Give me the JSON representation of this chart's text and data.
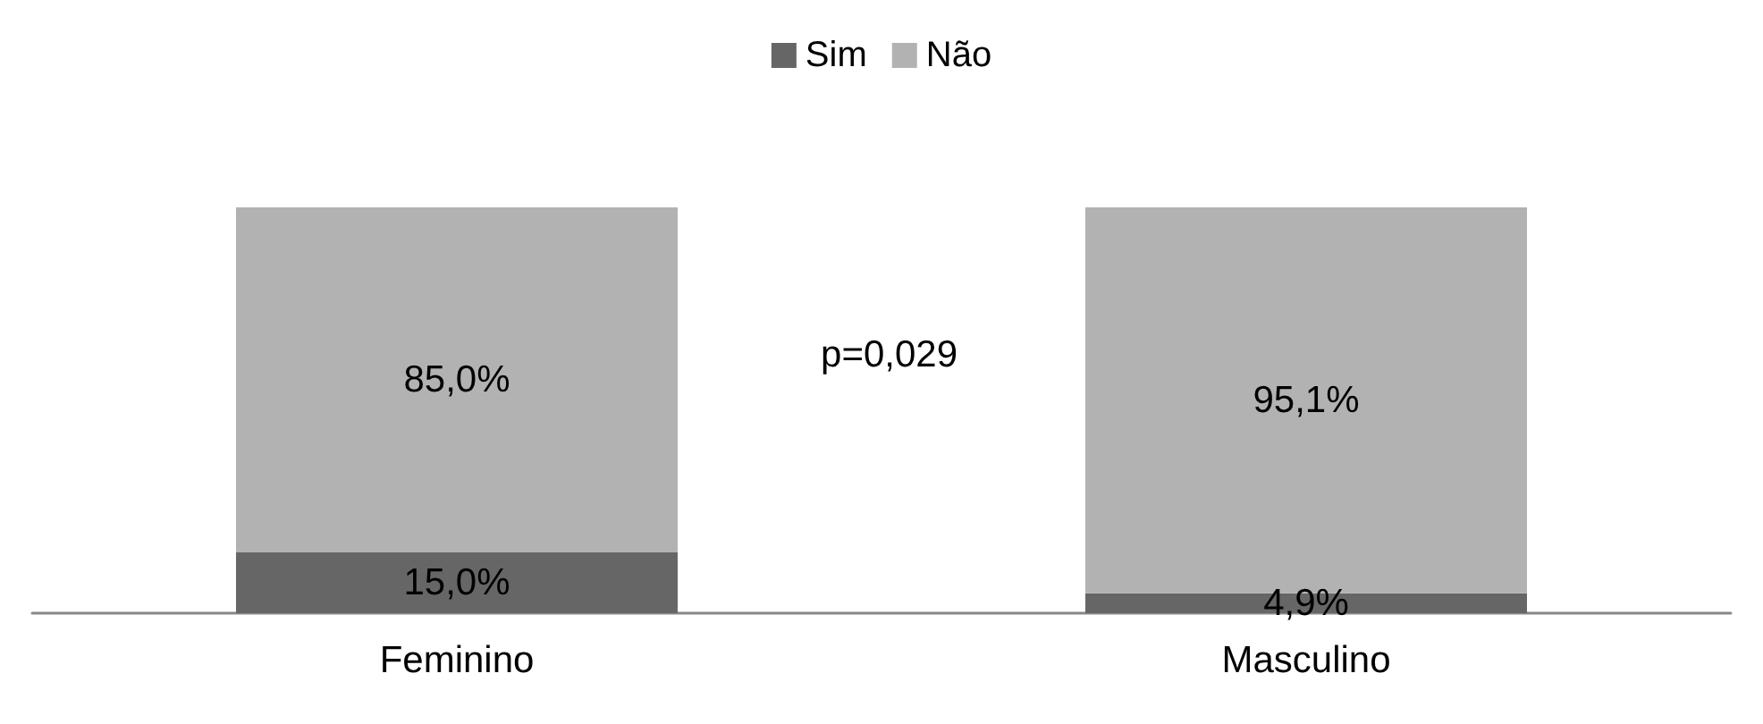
{
  "chart_data": {
    "type": "bar",
    "stacked": true,
    "categories": [
      "Feminino",
      "Masculino"
    ],
    "series": [
      {
        "name": "Sim",
        "color": "#666666",
        "values": [
          15.0,
          4.9
        ],
        "value_labels": [
          "15,0%",
          "4,9%"
        ]
      },
      {
        "name": "Não",
        "color": "#b2b2b2",
        "values": [
          85.0,
          95.1
        ],
        "value_labels": [
          "85,0%",
          "95,1%"
        ]
      }
    ],
    "legend": "top",
    "grid": false,
    "annotations": [
      "p=0,029"
    ]
  }
}
